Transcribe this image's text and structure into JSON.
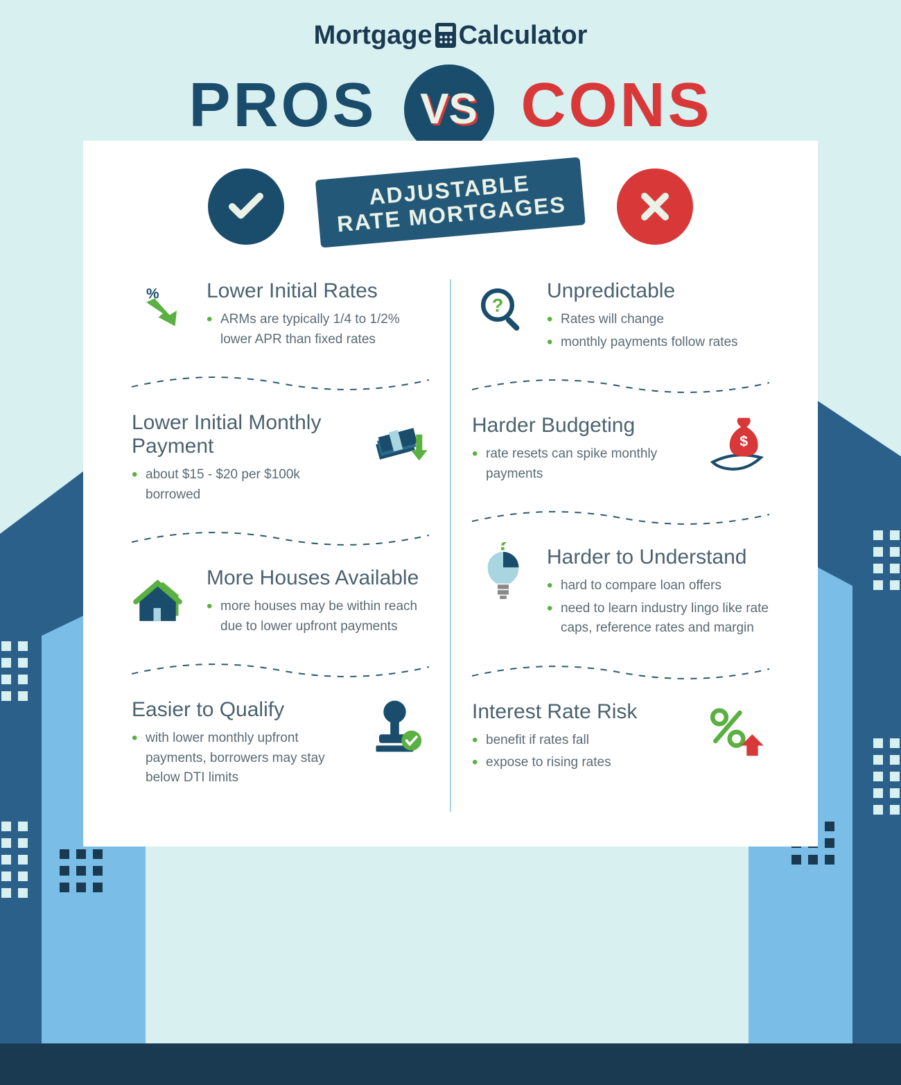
{
  "logo": {
    "part1": "Mortgage",
    "part2": "Calculator"
  },
  "title": {
    "pros": "PROS",
    "vs": "VS",
    "cons": "CONS"
  },
  "topic": {
    "line1": "ADJUSTABLE",
    "line2": "RATE MORTGAGES"
  },
  "colors": {
    "navy": "#1a4d6b",
    "red": "#d93838",
    "green": "#5ab041",
    "body_text": "#5a6a74",
    "heading_text": "#4a6270",
    "pro_bullet": "#5ab041",
    "con_bullet": "#5ab041",
    "background": "#d9f0f1",
    "card_bg": "#ffffff",
    "banner_bg": "#245878",
    "wave_stroke": "#2d5a6b"
  },
  "pros": [
    {
      "title": "Lower Initial Rates",
      "bullets": [
        "ARMs are typically 1/4 to 1/2% lower APR than fixed rates"
      ],
      "icon": "rate-down-icon",
      "layout": "icon-left"
    },
    {
      "title": "Lower Initial Monthly Payment",
      "bullets": [
        "about $15 - $20 per $100k borrowed"
      ],
      "icon": "cash-down-icon",
      "layout": "icon-right"
    },
    {
      "title": "More Houses Available",
      "bullets": [
        "more houses may be within reach due to lower upfront payments"
      ],
      "icon": "houses-icon",
      "layout": "icon-left"
    },
    {
      "title": "Easier to Qualify",
      "bullets": [
        "with lower monthly upfront payments, borrowers may stay below DTI limits"
      ],
      "icon": "stamp-icon",
      "layout": "icon-right"
    }
  ],
  "cons": [
    {
      "title": "Unpredictable",
      "bullets": [
        "Rates will change",
        "monthly payments follow rates"
      ],
      "icon": "magnify-question-icon",
      "layout": "icon-left"
    },
    {
      "title": "Harder Budgeting",
      "bullets": [
        "rate resets can spike monthly payments"
      ],
      "icon": "money-bag-icon",
      "layout": "icon-right"
    },
    {
      "title": "Harder to Understand",
      "bullets": [
        "hard to compare loan offers",
        "need to learn industry lingo like rate caps, reference rates and margin"
      ],
      "icon": "bulb-question-icon",
      "layout": "icon-left"
    },
    {
      "title": "Interest Rate Risk",
      "bullets": [
        "benefit if rates fall",
        "expose to rising rates"
      ],
      "icon": "percent-up-icon",
      "layout": "icon-right"
    }
  ],
  "typography": {
    "title_fontsize": 90,
    "item_title_fontsize": 30,
    "bullet_fontsize": 19,
    "logo_fontsize": 38,
    "banner_fontsize": 32
  }
}
